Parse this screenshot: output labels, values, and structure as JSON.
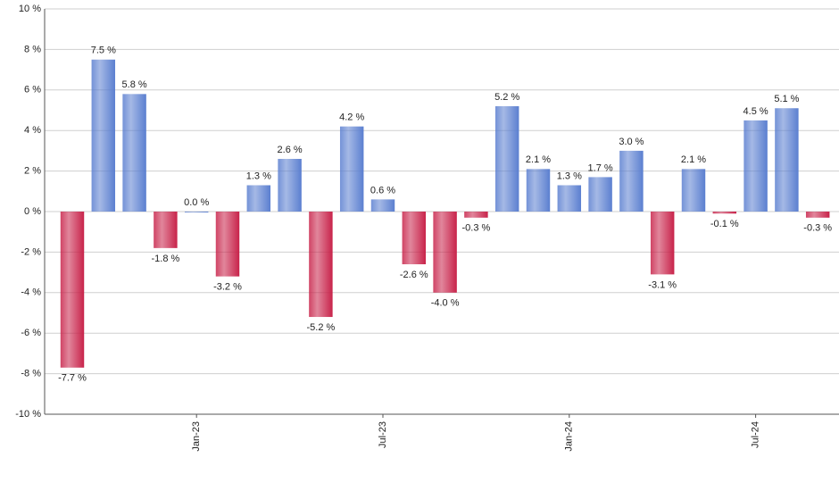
{
  "chart_data": {
    "type": "bar",
    "categories": [
      null,
      null,
      null,
      null,
      "Jan-23",
      null,
      null,
      null,
      null,
      null,
      "Jul-23",
      null,
      null,
      null,
      null,
      null,
      "Jan-24",
      null,
      null,
      null,
      null,
      null,
      "Jul-24",
      null,
      null
    ],
    "values": [
      -7.7,
      7.5,
      5.8,
      -1.8,
      0.0,
      -3.2,
      1.3,
      2.6,
      -5.2,
      4.2,
      0.6,
      -2.6,
      -4.0,
      -0.3,
      5.2,
      2.1,
      1.3,
      1.7,
      3.0,
      -3.1,
      2.1,
      -0.1,
      4.5,
      5.1,
      -0.3
    ],
    "value_labels": [
      "-7.7 %",
      "7.5 %",
      "5.8 %",
      "-1.8 %",
      "0.0 %",
      "-3.2 %",
      "1.3 %",
      "2.6 %",
      "-5.2 %",
      "4.2 %",
      "0.6 %",
      "-2.6 %",
      "-4.0 %",
      "-0.3 %",
      "5.2 %",
      "2.1 %",
      "1.3 %",
      "1.7 %",
      "3.0 %",
      "-3.1 %",
      "2.1 %",
      "-0.1 %",
      "4.5 %",
      "5.1 %",
      "-0.3 %"
    ],
    "positive_color": "#5b7fd0",
    "negative_color": "#c8234a",
    "ylim": [
      -10,
      10
    ],
    "yticks": [
      {
        "value": -10,
        "label": "-10 %"
      },
      {
        "value": -8,
        "label": "-8 %"
      },
      {
        "value": -6,
        "label": "-6 %"
      },
      {
        "value": -4,
        "label": "-4 %"
      },
      {
        "value": -2,
        "label": "-2 %"
      },
      {
        "value": 0,
        "label": "0 %"
      },
      {
        "value": 2,
        "label": "2 %"
      },
      {
        "value": 4,
        "label": "4 %"
      },
      {
        "value": 6,
        "label": "6 %"
      },
      {
        "value": 8,
        "label": "8 %"
      },
      {
        "value": 10,
        "label": "10 %"
      }
    ],
    "grid": true
  }
}
